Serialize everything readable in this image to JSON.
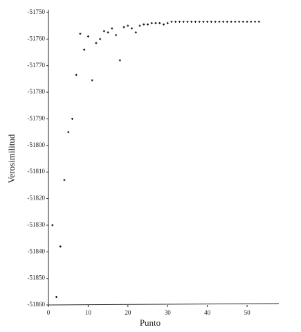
{
  "chart_data": {
    "type": "scatter",
    "x_label": "Punto",
    "y_label": "Verosimilitud",
    "color": "#111",
    "x": [
      1,
      2,
      3,
      4,
      5,
      6,
      7,
      8,
      9,
      10,
      11,
      12,
      13,
      14,
      15,
      16,
      17,
      18,
      19,
      20,
      21,
      22,
      23,
      24,
      25,
      26,
      27,
      28,
      29,
      30,
      31,
      32,
      33,
      34,
      35,
      36,
      37,
      38,
      39,
      40,
      41,
      42,
      43,
      44,
      45,
      46,
      47,
      48,
      49,
      50,
      51,
      52,
      53
    ],
    "values": [
      -51830,
      -51857,
      -51838,
      -51813,
      -51795,
      -51790,
      -51773.5,
      -51758,
      -51764,
      -51759,
      -51775.5,
      -51761.5,
      -51760,
      -51757,
      -51757.5,
      -51756,
      -51758.5,
      -51768,
      -51755.5,
      -51755,
      -51756,
      -51757.5,
      -51755,
      -51754.5,
      -51754.5,
      -51754,
      -51754,
      -51754,
      -51754.5,
      -51754,
      -51753.5,
      -51753.5,
      -51753.5,
      -51753.5,
      -51753.5,
      -51753.5,
      -51753.5,
      -51753.5,
      -51753.5,
      -51753.5,
      -51753.5,
      -51753.5,
      -51753.5,
      -51753.5,
      -51753.5,
      -51753.5,
      -51753.5,
      -51753.5,
      -51753.5,
      -51753.5,
      -51753.5,
      -51753.5,
      -51753.5
    ],
    "xlim": [
      0,
      58
    ],
    "xticks": [
      0,
      10,
      20,
      30,
      40,
      50
    ],
    "ylim": [
      -51860,
      -51750
    ],
    "yticks": [
      -51860,
      -51850,
      -51840,
      -51830,
      -51820,
      -51810,
      -51800,
      -51790,
      -51780,
      -51770,
      -51760,
      -51750
    ]
  }
}
